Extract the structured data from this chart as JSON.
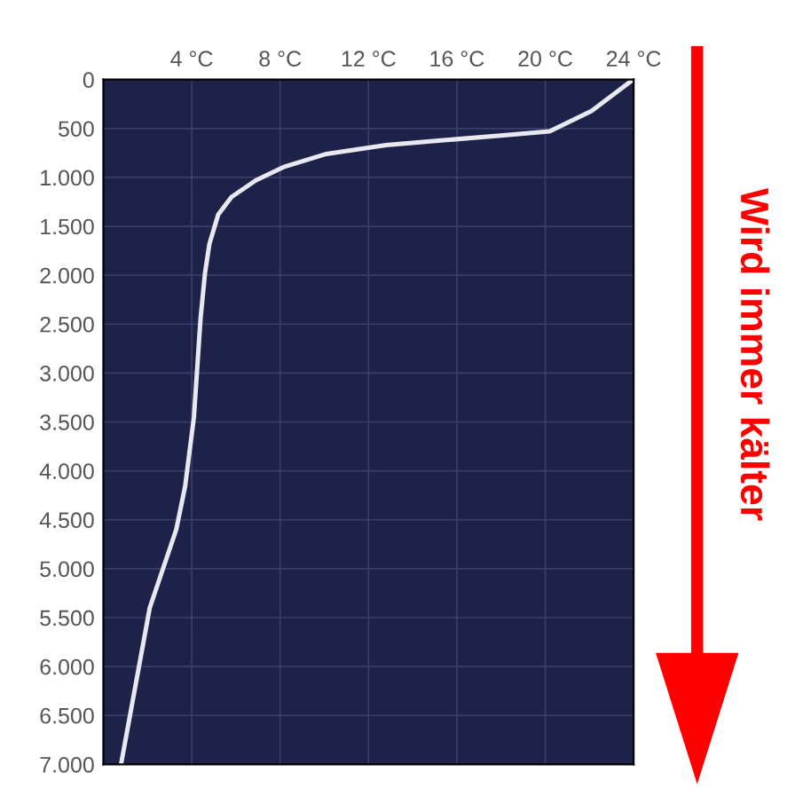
{
  "chart_data": {
    "type": "line",
    "x": [
      24,
      23.8,
      22.1,
      20.2,
      18.1,
      15.4,
      12.8,
      10.1,
      8.2,
      6.9,
      5.8,
      5.2,
      4.8,
      4.6,
      4.4,
      4.1,
      3.7,
      3.3,
      2.1,
      0.8
    ],
    "series": [
      {
        "color": "#e8e8f0",
        "values": [
          0,
          30,
          320,
          530,
          570,
          620,
          670,
          760,
          890,
          1030,
          1200,
          1380,
          1680,
          1980,
          2440,
          3450,
          4160,
          4600,
          5400,
          7000
        ]
      }
    ],
    "xlim": [
      0,
      24
    ],
    "xticks": [
      {
        "value": 4,
        "label": "4 °C"
      },
      {
        "value": 8,
        "label": "8 °C"
      },
      {
        "value": 12,
        "label": "12 °C"
      },
      {
        "value": 16,
        "label": "16 °C"
      },
      {
        "value": 20,
        "label": "20 °C"
      },
      {
        "value": 24,
        "label": "24 °C"
      }
    ],
    "ylim": [
      7000,
      0
    ],
    "yticks": [
      {
        "value": 0,
        "label": "0"
      },
      {
        "value": 500,
        "label": "500"
      },
      {
        "value": 1000,
        "label": "1.000"
      },
      {
        "value": 1500,
        "label": "1.500"
      },
      {
        "value": 2000,
        "label": "2.000"
      },
      {
        "value": 2500,
        "label": "2.500"
      },
      {
        "value": 3000,
        "label": "3.000"
      },
      {
        "value": 3500,
        "label": "3.500"
      },
      {
        "value": 4000,
        "label": "4.000"
      },
      {
        "value": 4500,
        "label": "4.500"
      },
      {
        "value": 5000,
        "label": "5.000"
      },
      {
        "value": 5500,
        "label": "5.500"
      },
      {
        "value": 6000,
        "label": "6.000"
      },
      {
        "value": 6500,
        "label": "6.500"
      },
      {
        "value": 7000,
        "label": "7.000"
      }
    ],
    "grid": true,
    "marker": "none",
    "line_style": "solid",
    "annotations": [
      "Wird immer kälter"
    ]
  }
}
